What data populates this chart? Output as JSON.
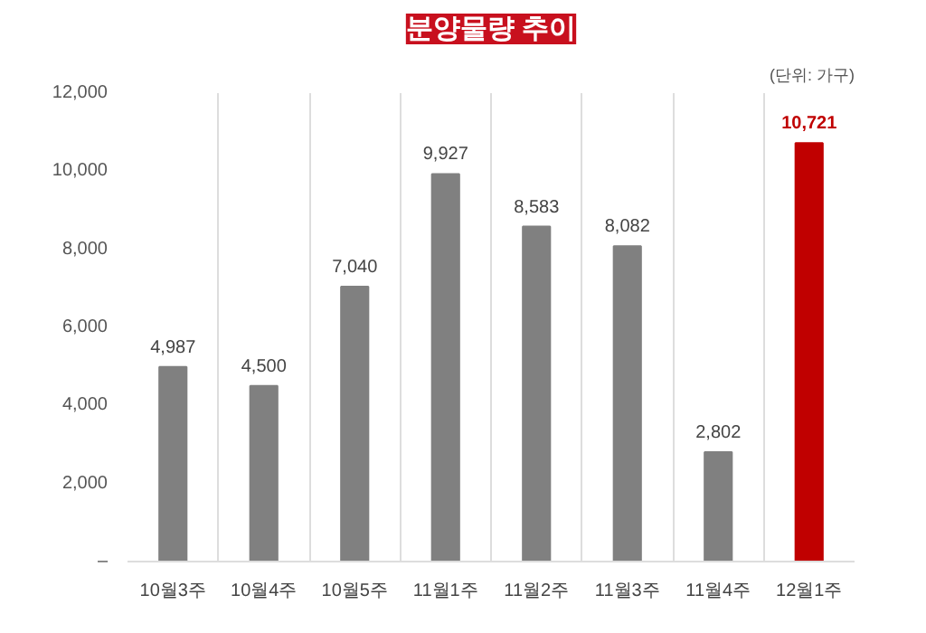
{
  "chart_data": {
    "type": "bar",
    "title": "분양물량 추이",
    "annotations": [
      "(단위: 가구)"
    ],
    "categories": [
      "10월3주",
      "10월4주",
      "10월5주",
      "11월1주",
      "11월2주",
      "11월3주",
      "11월4주",
      "12월1주"
    ],
    "values": [
      4987,
      4500,
      7040,
      9927,
      8583,
      8082,
      2802,
      10721
    ],
    "colors": [
      "#808080",
      "#808080",
      "#808080",
      "#808080",
      "#808080",
      "#808080",
      "#808080",
      "#c00000"
    ],
    "value_labels": [
      "4,987",
      "4,500",
      "7,040",
      "9,927",
      "8,583",
      "8,082",
      "2,802",
      "10,721"
    ],
    "grid": "x",
    "ylim": [
      0,
      12000
    ],
    "yticks": [
      {
        "value": 0,
        "label": "–"
      },
      {
        "value": 2000,
        "label": "2,000"
      },
      {
        "value": 4000,
        "label": "4,000"
      },
      {
        "value": 6000,
        "label": "6,000"
      },
      {
        "value": 8000,
        "label": "8,000"
      },
      {
        "value": 10000,
        "label": "10,000"
      },
      {
        "value": 12000,
        "label": "12,000"
      }
    ]
  }
}
